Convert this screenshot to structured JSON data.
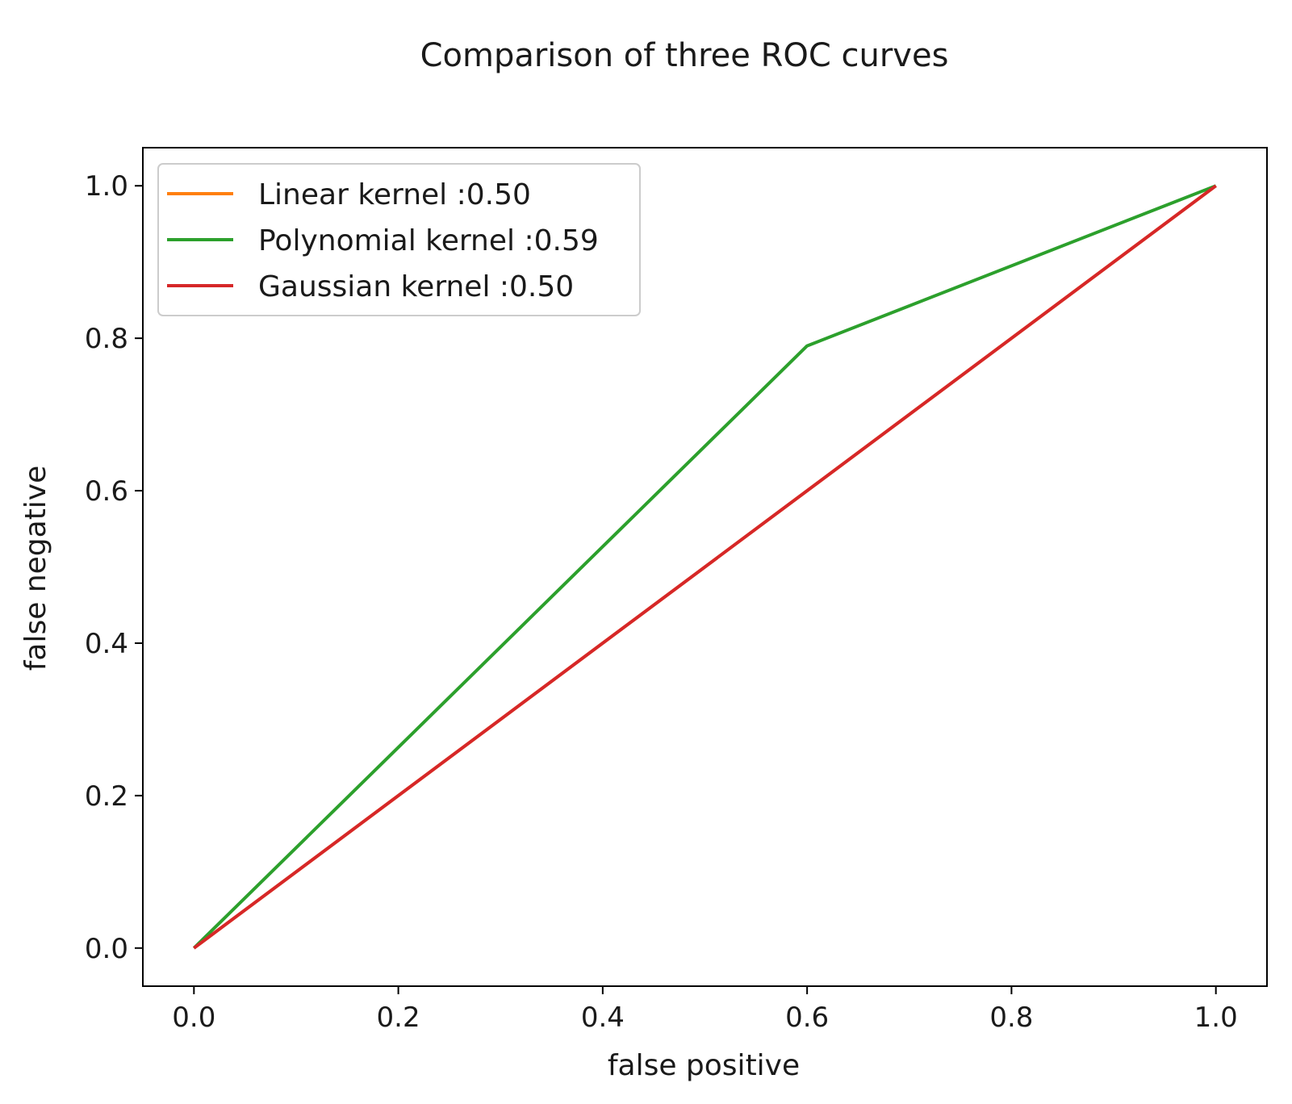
{
  "chart_data": {
    "type": "line",
    "title": "Comparison of three ROC curves",
    "xlabel": "false positive",
    "ylabel": "false negative",
    "xlim": [
      -0.05,
      1.05
    ],
    "ylim": [
      -0.05,
      1.05
    ],
    "xticks": [
      0.0,
      0.2,
      0.4,
      0.6,
      0.8,
      1.0
    ],
    "yticks": [
      0.0,
      0.2,
      0.4,
      0.6,
      0.8,
      1.0
    ],
    "xtick_labels": [
      "0.0",
      "0.2",
      "0.4",
      "0.6",
      "0.8",
      "1.0"
    ],
    "ytick_labels": [
      "0.0",
      "0.2",
      "0.4",
      "0.6",
      "0.8",
      "1.0"
    ],
    "legend_position": "top-left",
    "series": [
      {
        "name": "Linear kernel :0.50",
        "color": "#ff7f0e",
        "x": [
          0.0,
          1.0
        ],
        "y": [
          0.0,
          1.0
        ]
      },
      {
        "name": "Polynomial kernel :0.59",
        "color": "#2ca02c",
        "x": [
          0.0,
          0.6,
          1.0
        ],
        "y": [
          0.0,
          0.79,
          1.0
        ]
      },
      {
        "name": "Gaussian kernel :0.50",
        "color": "#d62728",
        "x": [
          0.0,
          1.0
        ],
        "y": [
          0.0,
          1.0
        ]
      }
    ]
  }
}
